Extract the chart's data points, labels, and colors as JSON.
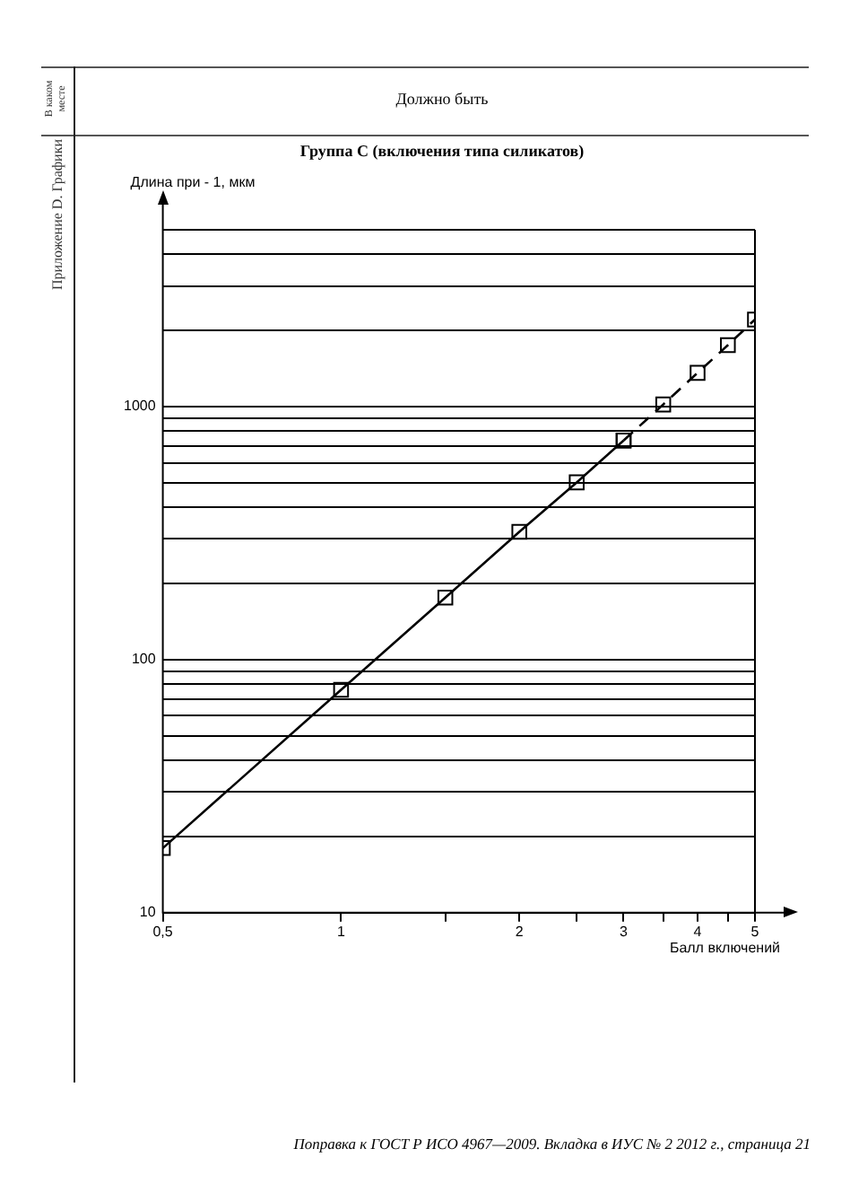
{
  "chart_data": {
    "type": "line",
    "title": "Группа С (включения типа силикатов)",
    "xlabel": "Балл включений",
    "ylabel": "Длина при - 1, мкм",
    "annotations": [
      "Должно быть",
      "В каком месте",
      "Приложение D. Графики",
      "Поправка к ГОСТ Р ИСО 4967—2009. Вкладка в ИУС № 2 2012 г., страница 21"
    ],
    "log": "xy",
    "grid": "y",
    "legend": false,
    "marker": "square",
    "xlim": [
      0.5,
      5
    ],
    "xticks": [
      {
        "value": 0.5,
        "label": "0,5"
      },
      1,
      {
        "value": 1.5,
        "label": null
      },
      2,
      {
        "value": 2.5,
        "label": null
      },
      3,
      {
        "value": 3.5,
        "label": null
      },
      4,
      {
        "value": 4.5,
        "label": null
      },
      5
    ],
    "ylim": [
      10,
      5000
    ],
    "yticks": [
      10,
      {
        "value": 20,
        "label": null
      },
      {
        "value": 30,
        "label": null
      },
      {
        "value": 40,
        "label": null
      },
      {
        "value": 50,
        "label": null
      },
      {
        "value": 60,
        "label": null
      },
      {
        "value": 70,
        "label": null
      },
      {
        "value": 80,
        "label": null
      },
      {
        "value": 90,
        "label": null
      },
      100,
      {
        "value": 200,
        "label": null
      },
      {
        "value": 300,
        "label": null
      },
      {
        "value": 400,
        "label": null
      },
      {
        "value": 500,
        "label": null
      },
      {
        "value": 600,
        "label": null
      },
      {
        "value": 700,
        "label": null
      },
      {
        "value": 800,
        "label": null
      },
      {
        "value": 900,
        "label": null
      },
      1000,
      {
        "value": 2000,
        "label": null
      },
      {
        "value": 3000,
        "label": null
      },
      {
        "value": 4000,
        "label": null
      },
      {
        "value": 5000,
        "label": null
      }
    ],
    "series": [
      {
        "color": "#000000",
        "line_style": "solid",
        "x": [
          0.5,
          1,
          1.5,
          2,
          2.5,
          3
        ],
        "values": [
          18,
          76,
          176,
          320,
          502,
          735
        ]
      },
      {
        "color": "#000000",
        "line_style": "dashed",
        "x": [
          3,
          3.5,
          4,
          4.5,
          5
        ],
        "values": [
          735,
          1020,
          1360,
          1750,
          2210
        ]
      }
    ]
  }
}
